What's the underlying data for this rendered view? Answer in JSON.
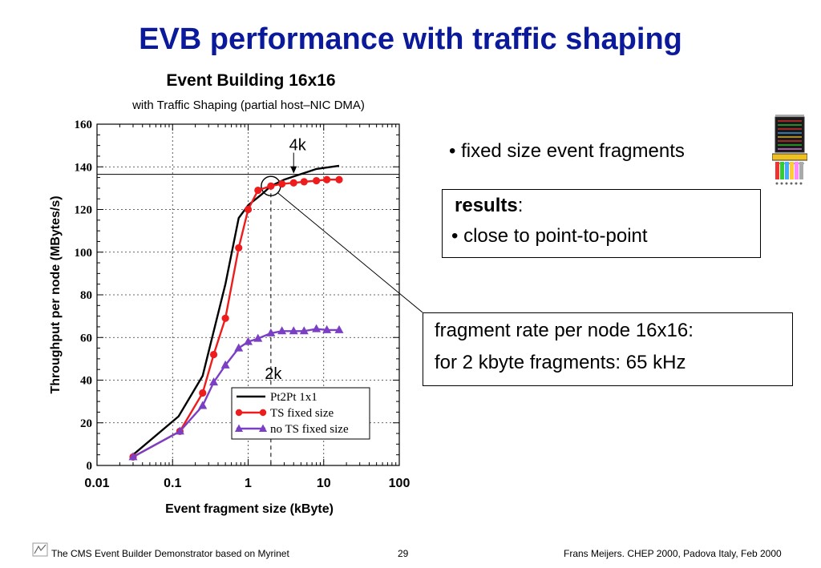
{
  "slide": {
    "title": "EVB performance with traffic shaping",
    "bullet": "• fixed size event fragments",
    "results_title": "results",
    "results_colon": ":",
    "results_item": "• close to point-to-point",
    "fragment_line1": "fragment rate per node 16x16:",
    "fragment_line2": "for 2 kbyte fragments: 65 kHz"
  },
  "footer": {
    "left": "The CMS Event Builder Demonstrator based on Myrinet",
    "page": "29",
    "right": "Frans Meijers.  CHEP 2000, Padova Italy, Feb 2000"
  },
  "icons": {
    "footer_logo": "cms-logo-icon",
    "chip": "nic-chip-icon"
  },
  "chart_data": {
    "type": "line",
    "title": "Event Building 16x16",
    "subtitle": "with Traffic Shaping (partial host–NIC DMA)",
    "xlabel": "Event fragment size (kByte)",
    "ylabel": "Throughput per node (MBytes/s)",
    "x_scale": "log",
    "xlim": [
      0.01,
      100
    ],
    "ylim": [
      0,
      160
    ],
    "x_ticks": [
      0.01,
      0.1,
      1,
      10,
      100
    ],
    "x_tick_labels": [
      "0.01",
      "0.1",
      "1",
      "10",
      "100"
    ],
    "y_ticks": [
      0,
      20,
      40,
      60,
      80,
      100,
      120,
      140,
      160
    ],
    "y_tick_labels": [
      "0",
      "20",
      "40",
      "60",
      "80",
      "100",
      "120",
      "140",
      "160"
    ],
    "grid": true,
    "legend_position": "bottom-right",
    "series": [
      {
        "name": "Pt2Pt 1x1",
        "color": "#000000",
        "marker": "none",
        "x": [
          0.03,
          0.12,
          0.25,
          0.5,
          0.75,
          1.0,
          1.5,
          2.0,
          3.0,
          4.0,
          6.0,
          8.0,
          16.0
        ],
        "y": [
          5,
          23,
          42,
          85,
          116,
          122,
          127,
          131,
          134,
          135.5,
          137.5,
          139,
          140.5
        ]
      },
      {
        "name": "TS fixed size",
        "color": "#ee1c1c",
        "marker": "circle",
        "x": [
          0.03,
          0.125,
          0.25,
          0.35,
          0.5,
          0.75,
          1.0,
          1.35,
          2.0,
          2.8,
          4.0,
          5.5,
          8.0,
          11.0,
          16.0
        ],
        "y": [
          4,
          16,
          34,
          52,
          69,
          102,
          120,
          129,
          131,
          132,
          132.5,
          133,
          133.5,
          134,
          134
        ]
      },
      {
        "name": "no TS fixed size",
        "color": "#7b3fc4",
        "marker": "triangle",
        "x": [
          0.03,
          0.125,
          0.25,
          0.35,
          0.5,
          0.75,
          1.0,
          1.35,
          2.0,
          2.8,
          4.0,
          5.5,
          8.0,
          11.0,
          16.0
        ],
        "y": [
          4,
          16,
          28,
          39,
          47,
          55,
          58,
          59.5,
          62,
          63,
          63,
          63,
          64,
          63.5,
          63.5
        ]
      }
    ],
    "reference_line_y": 136.5,
    "annotations": [
      {
        "text": "4k",
        "x": 4,
        "y": 136.5
      },
      {
        "text": "2k",
        "x": 2,
        "y": 131
      }
    ]
  }
}
